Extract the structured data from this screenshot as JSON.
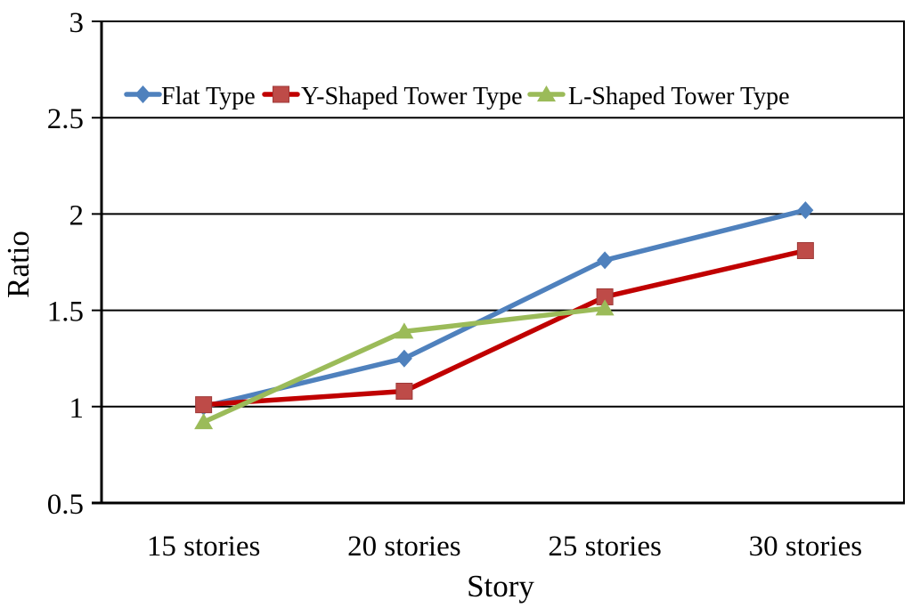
{
  "chart_data": {
    "type": "line",
    "title": "",
    "xlabel": "Story",
    "ylabel": "Ratio",
    "categories": [
      "15 stories",
      "20 stories",
      "25 stories",
      "30 stories"
    ],
    "y_ticks": [
      0.5,
      1,
      1.5,
      2,
      2.5,
      3
    ],
    "y_tick_labels": [
      "0.5",
      "1",
      "1.5",
      "2",
      "2.5",
      "3"
    ],
    "ylim": [
      0.5,
      3
    ],
    "grid": "horizontal",
    "legend_position": "top-inside-horizontal",
    "axis_color": "#000000",
    "background_color": "#ffffff",
    "series": [
      {
        "name": "Flat Type",
        "marker": "diamond",
        "color": "#4f81bd",
        "marker_color": "#4f81bd",
        "values": [
          1.0,
          1.25,
          1.76,
          2.02
        ]
      },
      {
        "name": "Y-Shaped Tower Type",
        "marker": "square",
        "color": "#c00000",
        "marker_color": "#be4b48",
        "values": [
          1.01,
          1.08,
          1.57,
          1.81
        ]
      },
      {
        "name": "L-Shaped Tower Type",
        "marker": "triangle",
        "color": "#9bbb59",
        "marker_color": "#9bbb59",
        "values": [
          0.92,
          1.39,
          1.51,
          null
        ]
      }
    ]
  }
}
